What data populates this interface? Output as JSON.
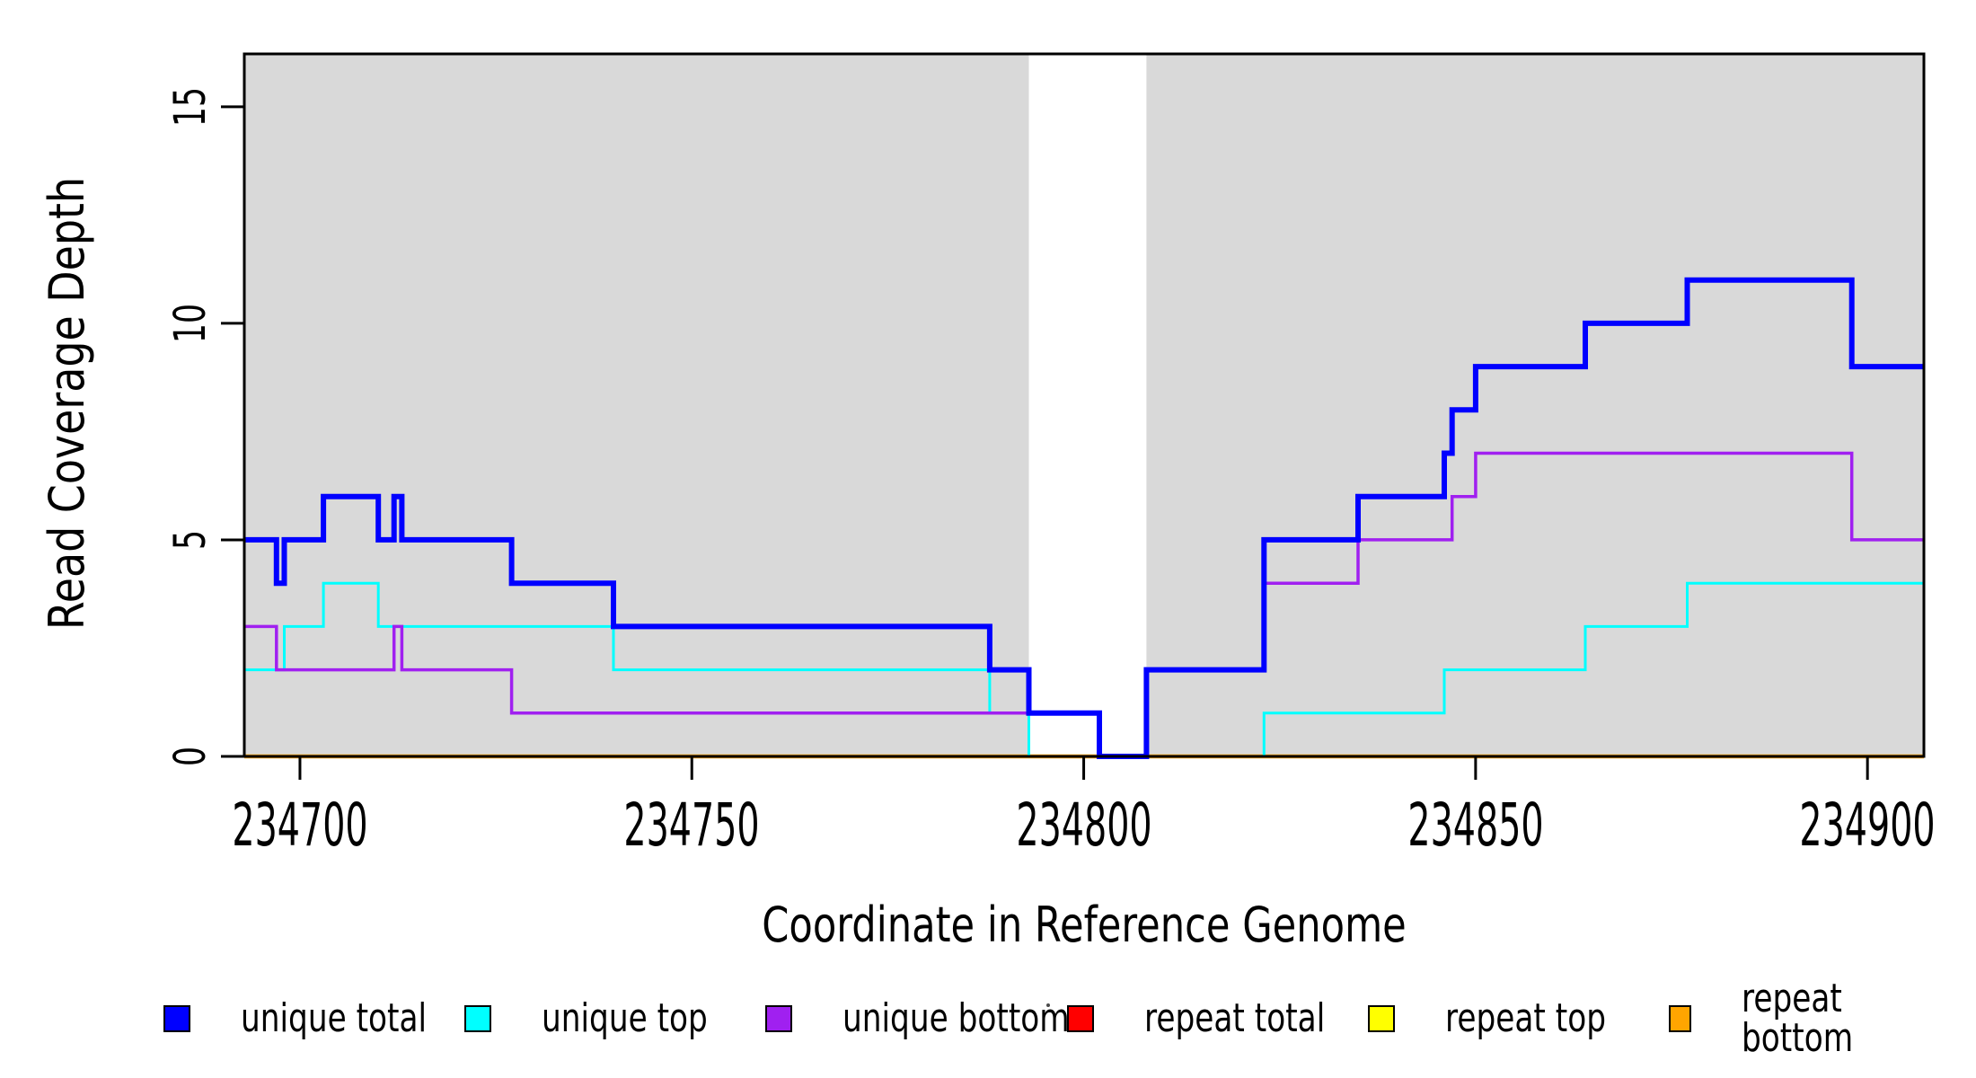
{
  "figure": {
    "x_axis_label": "Coordinate in Reference Genome",
    "y_axis_label": "Read Coverage Depth"
  },
  "legend": {
    "items": [
      {
        "label": "unique total",
        "color": "#0000FF"
      },
      {
        "label": "unique top",
        "color": "#00FFFF"
      },
      {
        "label": "unique bottom",
        "color": "#A020F0"
      },
      {
        "label": "repeat total",
        "color": "#FF0000"
      },
      {
        "label": "repeat top",
        "color": "#FFFF00"
      },
      {
        "label": "repeat bottom",
        "color": "#FFA500"
      }
    ]
  },
  "chart_data": {
    "type": "line",
    "subtype": "step-coverage",
    "title": "",
    "xlabel": "Coordinate in Reference Genome",
    "ylabel": "Read Coverage Depth",
    "xlim": [
      234692.9,
      234907.2
    ],
    "ylim": [
      0,
      16.22
    ],
    "x_ticks": [
      234700,
      234750,
      234800,
      234850,
      234900
    ],
    "y_ticks": [
      0,
      5,
      10,
      15
    ],
    "grid": false,
    "plot_background_color": "#D9D9D9",
    "no_data_region": {
      "x_start": 234793,
      "x_end": 234808,
      "color": "#FFFFFF"
    },
    "legend_position": "bottom",
    "series": [
      {
        "name": "repeat total",
        "color": "#FF0000",
        "line_width": 3,
        "start_value": 0,
        "steps": []
      },
      {
        "name": "repeat top",
        "color": "#FFFF00",
        "line_width": 3,
        "start_value": 0,
        "steps": []
      },
      {
        "name": "repeat bottom",
        "color": "#FFA500",
        "line_width": 4.5,
        "start_value": 0,
        "steps": []
      },
      {
        "name": "unique top",
        "color": "#00FFFF",
        "line_width": 3,
        "start_value": 2,
        "steps": [
          [
            234698,
            3
          ],
          [
            234703,
            4
          ],
          [
            234710,
            3
          ],
          [
            234740,
            2
          ],
          [
            234788,
            1
          ],
          [
            234793,
            0
          ],
          [
            234823,
            1
          ],
          [
            234846,
            2
          ],
          [
            234864,
            3
          ],
          [
            234877,
            4
          ]
        ]
      },
      {
        "name": "unique bottom",
        "color": "#A020F0",
        "line_width": 3.5,
        "start_value": 3,
        "steps": [
          [
            234697,
            2
          ],
          [
            234712,
            3
          ],
          [
            234713,
            2
          ],
          [
            234727,
            1
          ],
          [
            234802,
            0
          ],
          [
            234808,
            2
          ],
          [
            234823,
            4
          ],
          [
            234835,
            5
          ],
          [
            234847,
            6
          ],
          [
            234850,
            7
          ],
          [
            234898,
            5
          ]
        ]
      },
      {
        "name": "unique total",
        "color": "#0000FF",
        "line_width": 6,
        "start_value": 5,
        "steps": [
          [
            234697,
            4
          ],
          [
            234698,
            5
          ],
          [
            234703,
            6
          ],
          [
            234710,
            5
          ],
          [
            234712,
            6
          ],
          [
            234713,
            5
          ],
          [
            234727,
            4
          ],
          [
            234740,
            3
          ],
          [
            234788,
            2
          ],
          [
            234793,
            1
          ],
          [
            234802,
            0
          ],
          [
            234808,
            2
          ],
          [
            234823,
            5
          ],
          [
            234835,
            6
          ],
          [
            234846,
            7
          ],
          [
            234847,
            8
          ],
          [
            234850,
            9
          ],
          [
            234864,
            10
          ],
          [
            234877,
            11
          ],
          [
            234898,
            9
          ]
        ]
      }
    ]
  }
}
